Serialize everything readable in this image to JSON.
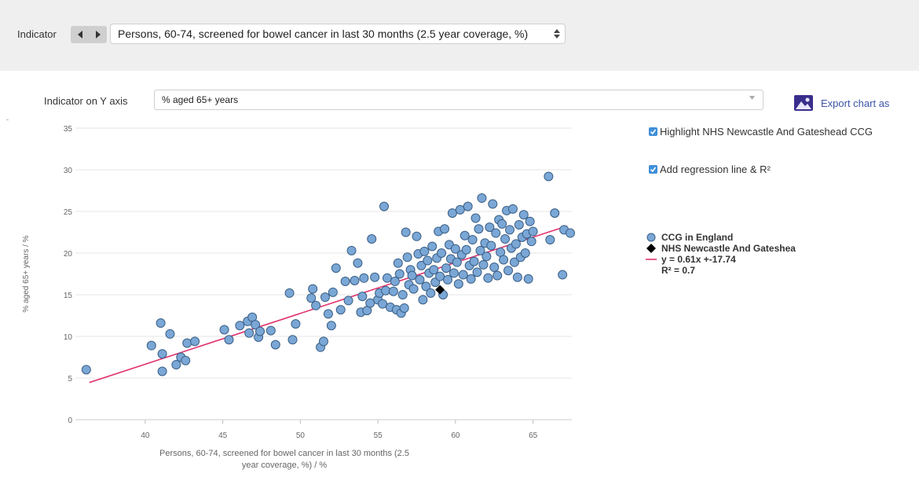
{
  "indicator_bar": {
    "label": "Indicator",
    "selected": "Persons, 60-74, screened for bowel cancer in last 30 months (2.5 year coverage, %)"
  },
  "y_axis_selector": {
    "label": "Indicator on Y axis",
    "selected": "% aged 65+ years"
  },
  "export": {
    "label": "Export chart as"
  },
  "options": {
    "highlight_label": "Highlight NHS Newcastle And Gateshead CCG",
    "regression_label": "Add regression line & R²"
  },
  "legend": {
    "ccg": "CCG in England",
    "highlight": "NHS Newcastle And Gateshea",
    "equation": "y = 0.61x +-17.74",
    "r2": "R² = 0.7"
  },
  "colors": {
    "point_fill": "#7aa7d6",
    "point_stroke": "#3b5f85",
    "regression_line": "#e0336f",
    "highlight_point": "#000000",
    "link": "#3d55a8"
  },
  "chart_data": {
    "type": "scatter",
    "xlabel": "Persons, 60-74, screened for bowel cancer in last 30 months (2.5 year coverage, %) / %",
    "ylabel": "% aged 65+ years / %",
    "xlim": [
      35.5,
      67.5
    ],
    "ylim": [
      0,
      35
    ],
    "x_ticks": [
      40,
      45,
      50,
      55,
      60,
      65
    ],
    "y_ticks": [
      0,
      5,
      10,
      15,
      20,
      25,
      30,
      35
    ],
    "grid": "horizontal",
    "legend_position": "right",
    "series": [
      {
        "name": "CCG in England",
        "points": [
          [
            36.2,
            6.0
          ],
          [
            40.4,
            8.9
          ],
          [
            41.0,
            11.6
          ],
          [
            41.1,
            7.9
          ],
          [
            41.1,
            5.8
          ],
          [
            41.6,
            10.3
          ],
          [
            42.0,
            6.6
          ],
          [
            42.3,
            7.5
          ],
          [
            42.6,
            7.1
          ],
          [
            42.7,
            9.2
          ],
          [
            43.2,
            9.4
          ],
          [
            45.1,
            10.8
          ],
          [
            45.4,
            9.6
          ],
          [
            46.1,
            11.3
          ],
          [
            46.6,
            11.8
          ],
          [
            46.7,
            10.4
          ],
          [
            46.9,
            12.3
          ],
          [
            47.1,
            11.4
          ],
          [
            47.3,
            9.9
          ],
          [
            47.4,
            10.6
          ],
          [
            48.1,
            10.7
          ],
          [
            48.4,
            9.0
          ],
          [
            49.3,
            15.2
          ],
          [
            49.5,
            9.6
          ],
          [
            49.7,
            11.5
          ],
          [
            50.7,
            14.6
          ],
          [
            50.8,
            15.7
          ],
          [
            51.0,
            13.7
          ],
          [
            51.3,
            8.7
          ],
          [
            51.5,
            9.4
          ],
          [
            51.6,
            14.7
          ],
          [
            51.8,
            12.7
          ],
          [
            52.0,
            11.3
          ],
          [
            52.1,
            15.3
          ],
          [
            52.3,
            18.2
          ],
          [
            52.6,
            13.2
          ],
          [
            52.9,
            16.6
          ],
          [
            53.1,
            14.3
          ],
          [
            53.3,
            20.3
          ],
          [
            53.5,
            16.7
          ],
          [
            53.7,
            18.8
          ],
          [
            53.9,
            12.9
          ],
          [
            54.0,
            14.8
          ],
          [
            54.1,
            17.0
          ],
          [
            54.3,
            13.1
          ],
          [
            54.5,
            14.0
          ],
          [
            54.6,
            21.7
          ],
          [
            54.8,
            17.1
          ],
          [
            55.0,
            14.4
          ],
          [
            55.1,
            15.2
          ],
          [
            55.3,
            13.9
          ],
          [
            55.4,
            25.6
          ],
          [
            55.5,
            15.5
          ],
          [
            55.6,
            17.0
          ],
          [
            55.8,
            13.5
          ],
          [
            56.0,
            15.4
          ],
          [
            56.1,
            16.6
          ],
          [
            56.2,
            13.2
          ],
          [
            56.3,
            18.8
          ],
          [
            56.4,
            17.5
          ],
          [
            56.5,
            12.8
          ],
          [
            56.6,
            15.0
          ],
          [
            56.7,
            13.4
          ],
          [
            56.8,
            22.5
          ],
          [
            56.9,
            19.5
          ],
          [
            57.0,
            16.2
          ],
          [
            57.1,
            18.0
          ],
          [
            57.2,
            17.3
          ],
          [
            57.3,
            15.7
          ],
          [
            57.5,
            22.0
          ],
          [
            57.6,
            19.9
          ],
          [
            57.7,
            16.8
          ],
          [
            57.8,
            18.5
          ],
          [
            57.9,
            14.4
          ],
          [
            58.0,
            20.2
          ],
          [
            58.1,
            16.0
          ],
          [
            58.2,
            19.1
          ],
          [
            58.3,
            17.6
          ],
          [
            58.4,
            15.2
          ],
          [
            58.5,
            20.8
          ],
          [
            58.6,
            18.0
          ],
          [
            58.7,
            16.5
          ],
          [
            58.8,
            19.4
          ],
          [
            58.9,
            22.6
          ],
          [
            59.0,
            17.2
          ],
          [
            59.1,
            20.0
          ],
          [
            59.2,
            15.0
          ],
          [
            59.3,
            22.9
          ],
          [
            59.4,
            18.2
          ],
          [
            59.5,
            16.8
          ],
          [
            59.6,
            21.0
          ],
          [
            59.7,
            19.3
          ],
          [
            59.8,
            24.8
          ],
          [
            59.9,
            17.6
          ],
          [
            60.0,
            20.5
          ],
          [
            60.1,
            18.9
          ],
          [
            60.2,
            16.3
          ],
          [
            60.3,
            25.2
          ],
          [
            60.4,
            19.8
          ],
          [
            60.5,
            17.4
          ],
          [
            60.6,
            22.1
          ],
          [
            60.7,
            20.4
          ],
          [
            60.8,
            25.6
          ],
          [
            60.9,
            18.5
          ],
          [
            61.0,
            16.9
          ],
          [
            61.1,
            21.6
          ],
          [
            61.2,
            19.0
          ],
          [
            61.3,
            24.2
          ],
          [
            61.4,
            17.7
          ],
          [
            61.5,
            22.9
          ],
          [
            61.6,
            20.3
          ],
          [
            61.7,
            26.6
          ],
          [
            61.8,
            18.6
          ],
          [
            61.9,
            21.2
          ],
          [
            62.0,
            19.6
          ],
          [
            62.1,
            17.0
          ],
          [
            62.2,
            23.1
          ],
          [
            62.3,
            20.9
          ],
          [
            62.4,
            25.9
          ],
          [
            62.5,
            18.3
          ],
          [
            62.6,
            22.4
          ],
          [
            62.7,
            17.3
          ],
          [
            62.8,
            24.0
          ],
          [
            62.9,
            20.1
          ],
          [
            63.0,
            23.5
          ],
          [
            63.1,
            19.2
          ],
          [
            63.2,
            21.7
          ],
          [
            63.3,
            25.1
          ],
          [
            63.4,
            17.9
          ],
          [
            63.5,
            22.8
          ],
          [
            63.6,
            20.6
          ],
          [
            63.7,
            25.3
          ],
          [
            63.8,
            18.9
          ],
          [
            63.9,
            21.1
          ],
          [
            64.0,
            17.1
          ],
          [
            64.1,
            23.4
          ],
          [
            64.2,
            19.5
          ],
          [
            64.3,
            21.9
          ],
          [
            64.4,
            24.6
          ],
          [
            64.5,
            20.0
          ],
          [
            64.6,
            22.3
          ],
          [
            64.7,
            16.9
          ],
          [
            64.8,
            23.8
          ],
          [
            64.9,
            21.4
          ],
          [
            65.0,
            22.6
          ],
          [
            66.0,
            29.2
          ],
          [
            66.1,
            21.6
          ],
          [
            66.4,
            24.8
          ],
          [
            66.9,
            17.4
          ],
          [
            67.0,
            22.8
          ],
          [
            67.4,
            22.4
          ]
        ]
      },
      {
        "name": "NHS Newcastle And Gateshea",
        "points": [
          [
            59.0,
            15.6
          ]
        ]
      }
    ],
    "regression": {
      "slope": 0.61,
      "intercept": -17.74,
      "r2": 0.7,
      "x_range": [
        36.4,
        67.2
      ]
    }
  }
}
